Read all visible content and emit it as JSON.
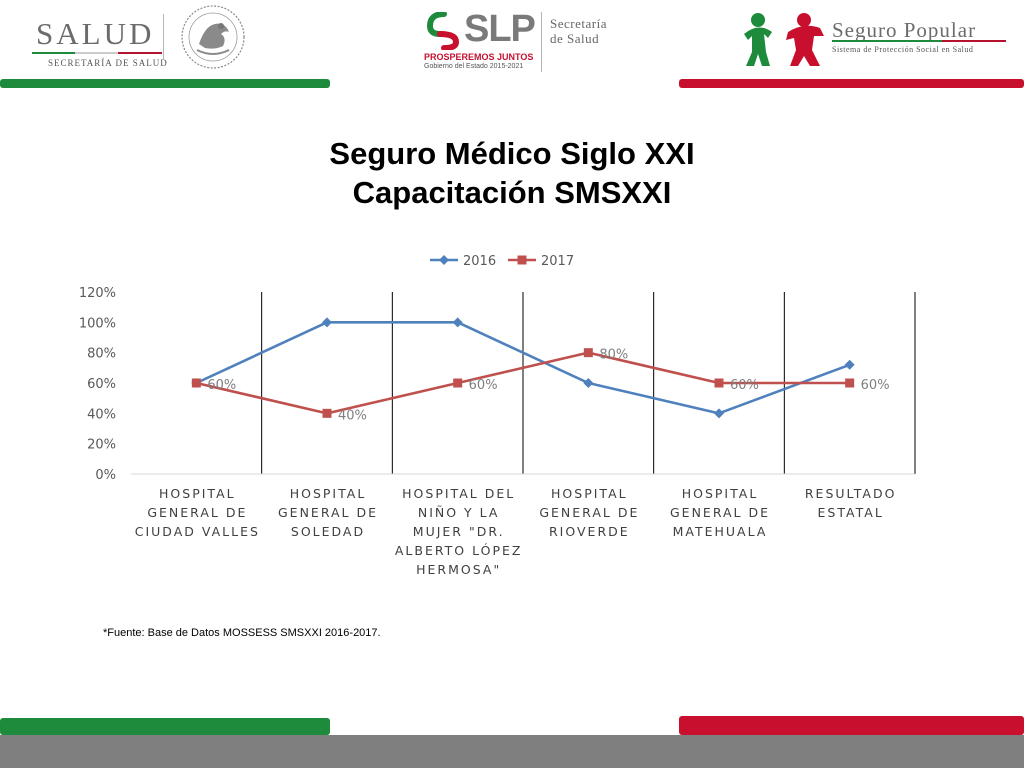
{
  "header": {
    "salud": {
      "title": "SALUD",
      "subtitle": "SECRETARÍA DE SALUD"
    },
    "slp": {
      "title": "SLP",
      "tagline": "PROSPEREMOS JUNTOS",
      "gobierno": "Gobierno del Estado 2015-2021",
      "secretaria_line1": "Secretaría",
      "secretaria_line2": "de Salud"
    },
    "seguro_popular": {
      "title": "Seguro Popular",
      "subtitle": "Sistema de Protección Social en Salud"
    }
  },
  "slide": {
    "title_line1": "Seguro Médico Siglo XXI",
    "title_line2": "Capacitación SMSXXI",
    "source": "*Fuente: Base de Datos MOSSESS SMSXXI 2016-2017."
  },
  "colors": {
    "green": "#1e8a3c",
    "red": "#c8102e",
    "gray": "#7f7f7f",
    "series_2016": "#4f81bd",
    "series_2017": "#c0504d"
  },
  "chart_data": {
    "type": "line",
    "title": "",
    "xlabel": "",
    "ylabel": "",
    "ylim": [
      0,
      1.2
    ],
    "y_ticks": [
      "0%",
      "20%",
      "40%",
      "60%",
      "80%",
      "100%",
      "120%"
    ],
    "legend_position": "top",
    "categories": [
      "HOSPITAL GENERAL DE CIUDAD VALLES",
      "HOSPITAL GENERAL DE SOLEDAD",
      "HOSPITAL DEL NIÑO Y LA MUJER \"DR. ALBERTO LÓPEZ HERMOSA\"",
      "HOSPITAL GENERAL DE RIOVERDE",
      "HOSPITAL GENERAL DE MATEHUALA",
      "RESULTADO ESTATAL"
    ],
    "category_lines": [
      [
        "HOSPITAL",
        "GENERAL DE",
        "CIUDAD VALLES"
      ],
      [
        "HOSPITAL",
        "GENERAL DE",
        "SOLEDAD"
      ],
      [
        "HOSPITAL DEL",
        "NIÑO Y LA",
        "MUJER \"DR.",
        "ALBERTO LÓPEZ",
        "HERMOSA\""
      ],
      [
        "HOSPITAL",
        "GENERAL DE",
        "RIOVERDE"
      ],
      [
        "HOSPITAL",
        "GENERAL DE",
        "MATEHUALA"
      ],
      [
        "RESULTADO",
        "ESTATAL"
      ]
    ],
    "series": [
      {
        "name": "2016",
        "color": "#4f81bd",
        "marker": "diamond",
        "values": [
          0.6,
          1.0,
          1.0,
          0.6,
          0.4,
          0.72
        ],
        "labels": [
          "",
          "",
          "",
          "",
          "",
          ""
        ]
      },
      {
        "name": "2017",
        "color": "#c0504d",
        "marker": "square",
        "values": [
          0.6,
          0.4,
          0.6,
          0.8,
          0.6,
          0.6
        ],
        "labels": [
          "60%",
          "40%",
          "60%",
          "80%",
          "60%",
          "60%"
        ]
      }
    ]
  }
}
